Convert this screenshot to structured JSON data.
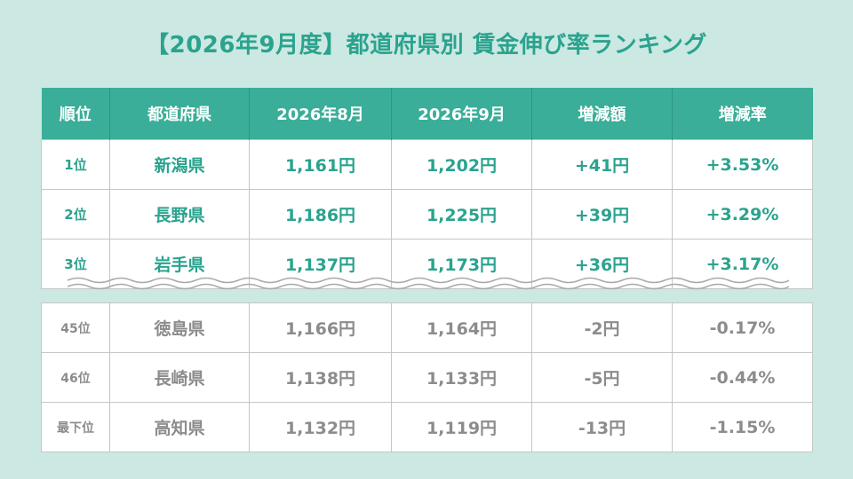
{
  "title": "【2026年9月度】都道府県別 賃金伸び率ランキング",
  "headers": [
    "順位",
    "都道府県",
    "2026年8月",
    "2026年9月",
    "増減額",
    "増減率"
  ],
  "top_rows": [
    [
      "1位",
      "新潟県",
      "1,161円",
      "1,202円",
      "+41円",
      "+3.53%"
    ],
    [
      "2位",
      "長野県",
      "1,186円",
      "1,225円",
      "+39円",
      "+3.29%"
    ],
    [
      "3位",
      "岩手県",
      "1,137円",
      "1,173円",
      "+36円",
      "+3.17%"
    ]
  ],
  "bottom_rows": [
    [
      "45位",
      "徳島県",
      "1,166円",
      "1,164円",
      "-2円",
      "-0.17%"
    ],
    [
      "46位",
      "長崎県",
      "1,138円",
      "1,133円",
      "-5円",
      "-0.44%"
    ],
    [
      "最下位",
      "高知県",
      "1,132円",
      "1,119円",
      "-13円",
      "-1.15%"
    ]
  ],
  "colors": {
    "accent": "#3aae98",
    "background": "#cbe8e2",
    "muted_text": "#8c8c8c"
  }
}
